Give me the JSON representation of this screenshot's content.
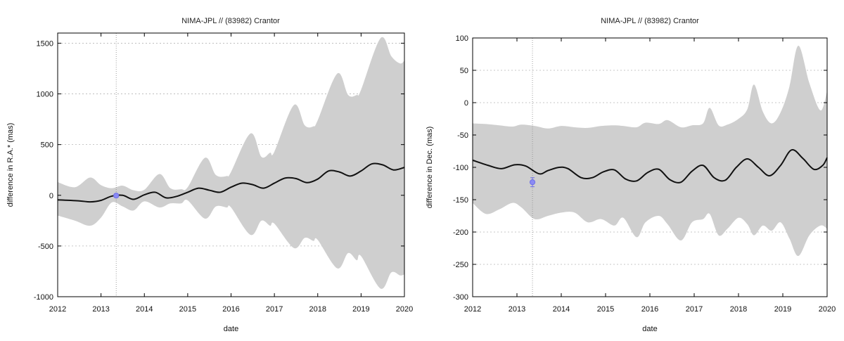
{
  "chart_data": [
    {
      "type": "line",
      "title": "NIMA-JPL // (83982) Crantor",
      "xlabel": "date",
      "ylabel": "difference in R.A.* (mas)",
      "xlim": [
        2012,
        2020
      ],
      "ylim": [
        -1000,
        1600
      ],
      "xticks": [
        2012,
        2013,
        2014,
        2015,
        2016,
        2017,
        2018,
        2019,
        2020
      ],
      "yticks": [
        -1000,
        -500,
        0,
        500,
        1000,
        1500
      ],
      "grid": true,
      "vline_x": 2013.35,
      "colors": {
        "band": "#cfcfcf",
        "line": "#111111",
        "observation": "#8a8af4"
      },
      "series": [
        {
          "kind": "line",
          "x": [
            2012.0,
            2012.5,
            2012.75,
            2013.0,
            2013.25,
            2013.5,
            2013.75,
            2014.0,
            2014.25,
            2014.5,
            2014.75,
            2015.0,
            2015.25,
            2015.5,
            2015.75,
            2016.0,
            2016.25,
            2016.5,
            2016.75,
            2017.0,
            2017.25,
            2017.5,
            2017.75,
            2018.0,
            2018.25,
            2018.5,
            2018.75,
            2019.0,
            2019.25,
            2019.5,
            2019.75,
            2020.0
          ],
          "y": [
            -45,
            -55,
            -65,
            -50,
            -8,
            0,
            -40,
            5,
            30,
            -25,
            -10,
            30,
            70,
            50,
            30,
            80,
            120,
            105,
            70,
            120,
            170,
            165,
            125,
            160,
            240,
            230,
            190,
            240,
            310,
            300,
            250,
            275
          ]
        },
        {
          "kind": "band",
          "x": [
            2012.0,
            2012.4,
            2012.75,
            2013.0,
            2013.25,
            2013.5,
            2013.75,
            2014.0,
            2014.35,
            2014.6,
            2014.85,
            2015.0,
            2015.4,
            2015.65,
            2015.9,
            2016.0,
            2016.45,
            2016.7,
            2016.9,
            2017.0,
            2017.45,
            2017.7,
            2017.9,
            2018.0,
            2018.45,
            2018.7,
            2018.9,
            2019.0,
            2019.45,
            2019.7,
            2019.9,
            2020.0
          ],
          "upper": [
            130,
            80,
            175,
            100,
            70,
            95,
            50,
            55,
            210,
            70,
            60,
            80,
            370,
            200,
            190,
            230,
            610,
            380,
            420,
            430,
            890,
            690,
            680,
            740,
            1200,
            990,
            990,
            1040,
            1550,
            1370,
            1300,
            1330
          ],
          "lower": [
            -200,
            -250,
            -300,
            -220,
            -70,
            -110,
            -150,
            -60,
            -120,
            -80,
            -80,
            -50,
            -230,
            -110,
            -120,
            -120,
            -390,
            -250,
            -300,
            -280,
            -520,
            -420,
            -450,
            -440,
            -720,
            -570,
            -640,
            -600,
            -920,
            -760,
            -790,
            -780
          ]
        }
      ],
      "observation": {
        "x": 2013.35,
        "y": -3,
        "err": 8
      }
    },
    {
      "type": "line",
      "title": "NIMA-JPL // (83982) Crantor",
      "xlabel": "date",
      "ylabel": "difference in Dec. (mas)",
      "xlim": [
        2012,
        2020
      ],
      "ylim": [
        -300,
        100
      ],
      "xticks": [
        2012,
        2013,
        2014,
        2015,
        2016,
        2017,
        2018,
        2019,
        2020
      ],
      "yticks": [
        -300,
        -250,
        -200,
        -150,
        -100,
        -50,
        0,
        50,
        100
      ],
      "grid": true,
      "vline_x": 2013.35,
      "colors": {
        "band": "#cfcfcf",
        "line": "#111111",
        "observation": "#8a8af4"
      },
      "series": [
        {
          "kind": "line",
          "x": [
            2012.0,
            2012.35,
            2012.65,
            2012.95,
            2013.2,
            2013.5,
            2013.7,
            2013.95,
            2014.15,
            2014.45,
            2014.7,
            2014.95,
            2015.2,
            2015.45,
            2015.7,
            2015.95,
            2016.2,
            2016.45,
            2016.7,
            2016.95,
            2017.2,
            2017.45,
            2017.7,
            2017.95,
            2018.2,
            2018.45,
            2018.7,
            2018.95,
            2019.2,
            2019.45,
            2019.7,
            2019.9,
            2020.0
          ],
          "y": [
            -89,
            -97,
            -102,
            -96,
            -98,
            -110,
            -105,
            -100,
            -102,
            -116,
            -116,
            -107,
            -104,
            -118,
            -121,
            -108,
            -103,
            -119,
            -123,
            -106,
            -97,
            -116,
            -120,
            -100,
            -87,
            -100,
            -113,
            -97,
            -73,
            -86,
            -103,
            -97,
            -85
          ]
        },
        {
          "kind": "band",
          "x": [
            2012.0,
            2012.3,
            2012.6,
            2012.9,
            2013.1,
            2013.4,
            2013.7,
            2014.0,
            2014.3,
            2014.6,
            2014.9,
            2015.2,
            2015.4,
            2015.7,
            2015.9,
            2016.2,
            2016.4,
            2016.7,
            2016.95,
            2017.2,
            2017.35,
            2017.55,
            2017.75,
            2018.0,
            2018.2,
            2018.35,
            2018.55,
            2018.75,
            2018.95,
            2019.15,
            2019.35,
            2019.6,
            2019.85,
            2020.0
          ],
          "upper": [
            -32,
            -33,
            -35,
            -37,
            -34,
            -36,
            -40,
            -36,
            -38,
            -39,
            -36,
            -35,
            -36,
            -38,
            -31,
            -33,
            -27,
            -38,
            -35,
            -32,
            -8,
            -35,
            -34,
            -25,
            -10,
            28,
            -14,
            -32,
            -15,
            25,
            88,
            30,
            -12,
            18
          ],
          "lower": [
            -155,
            -172,
            -165,
            -155,
            -162,
            -180,
            -175,
            -170,
            -170,
            -185,
            -180,
            -190,
            -178,
            -208,
            -185,
            -175,
            -188,
            -213,
            -185,
            -180,
            -172,
            -205,
            -195,
            -178,
            -188,
            -205,
            -190,
            -198,
            -185,
            -210,
            -237,
            -205,
            -190,
            -195
          ]
        }
      ],
      "observation": {
        "x": 2013.35,
        "y": -123,
        "err": 7
      }
    }
  ]
}
